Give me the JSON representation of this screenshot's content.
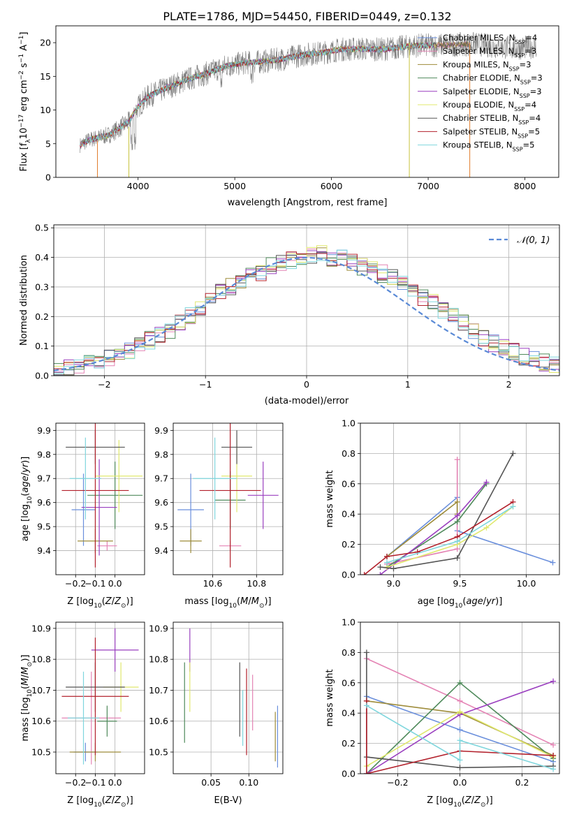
{
  "chart_data": [
    {
      "type": "line",
      "title": "PLATE=1786, MJD=54450, FIBERID=0449, z=0.132",
      "xlabel": "wavelength [Angstrom, rest frame]",
      "ylabel": "Flux [f_λ10^-17 erg cm^-2 s^-1 A^-1]",
      "xlim": [
        3150,
        8350
      ],
      "ylim": [
        0,
        22.5
      ],
      "xticks": [
        4000,
        5000,
        6000,
        7000,
        8000
      ],
      "yticks": [
        0,
        5,
        10,
        15,
        20
      ],
      "grid": false,
      "legend_position": "top-right",
      "legend": [
        {
          "name": "Chabrier MILES, N",
          "sub": "SSP",
          "tail": "=4"
        },
        {
          "name": "Salpeter MILES, N",
          "sub": "SSP",
          "tail": "=3"
        },
        {
          "name": "Kroupa MILES, N",
          "sub": "SSP",
          "tail": "=3"
        },
        {
          "name": "Chabrier ELODIE, N",
          "sub": "SSP",
          "tail": "=3"
        },
        {
          "name": "Salpeter ELODIE, N",
          "sub": "SSP",
          "tail": "=3"
        },
        {
          "name": "Kroupa ELODIE, N",
          "sub": "SSP",
          "tail": "=4"
        },
        {
          "name": "Chabrier STELIB, N",
          "sub": "SSP",
          "tail": "=4"
        },
        {
          "name": "Salpeter STELIB, N",
          "sub": "SSP",
          "tail": "=5"
        },
        {
          "name": "Kroupa STELIB, N",
          "sub": "SSP",
          "tail": "=5"
        }
      ],
      "colors": [
        "#6a8fdc",
        "#e483b4",
        "#9e8c3a",
        "#4f8a5b",
        "#9a3fbf",
        "#e0e86e",
        "#555555",
        "#b2202b",
        "#7fd6dd"
      ],
      "data_color": "#7f7f7f",
      "spectrum_envelope": {
        "x": [
          3400,
          3500,
          3700,
          3900,
          4000,
          4100,
          4300,
          4500,
          4700,
          4900,
          5100,
          5300,
          5500,
          5700,
          5900,
          6100,
          6300,
          6500,
          6700,
          6900,
          7100,
          7300,
          7500,
          7700,
          7900,
          8100
        ],
        "y": [
          4.8,
          5.6,
          6.3,
          8.2,
          10.5,
          12.0,
          13.3,
          14.5,
          15.4,
          16.5,
          17.0,
          17.2,
          17.6,
          18.2,
          18.5,
          19.0,
          19.1,
          19.0,
          19.3,
          19.6,
          19.6,
          19.7,
          19.8,
          19.4,
          19.2,
          19.4
        ]
      }
    },
    {
      "type": "bar",
      "xlabel": "(data-model)/error",
      "ylabel": "Normed distribution",
      "xlim": [
        -2.5,
        2.5
      ],
      "ylim": [
        0,
        0.51
      ],
      "xticks": [
        -2,
        -1,
        0,
        1,
        2
      ],
      "yticks": [
        0.0,
        0.1,
        0.2,
        0.3,
        0.4,
        0.5
      ],
      "grid": true,
      "legend_position": "top-right",
      "legend": [
        "𝒩(0, 1)"
      ],
      "reference_color": "#5a8ad6",
      "bin_width": 0.1,
      "bin_start": -2.5,
      "histogram": [
        0.02,
        0.025,
        0.03,
        0.04,
        0.055,
        0.06,
        0.075,
        0.085,
        0.1,
        0.12,
        0.135,
        0.15,
        0.18,
        0.2,
        0.23,
        0.25,
        0.28,
        0.3,
        0.32,
        0.34,
        0.35,
        0.37,
        0.38,
        0.39,
        0.4,
        0.41,
        0.41,
        0.4,
        0.395,
        0.385,
        0.37,
        0.36,
        0.345,
        0.33,
        0.31,
        0.29,
        0.265,
        0.245,
        0.22,
        0.2,
        0.175,
        0.15,
        0.13,
        0.11,
        0.095,
        0.08,
        0.065,
        0.055,
        0.045,
        0.035
      ]
    },
    {
      "type": "scatter",
      "xlabel": "Z [log10(Z/Z_sun)]",
      "ylabel": "age [log10(age/yr)]",
      "xlim": [
        -0.3,
        0.15
      ],
      "ylim": [
        9.3,
        9.93
      ],
      "xticks": [
        -0.2,
        -0.1,
        0.0
      ],
      "xticklabels": [
        "−0.2",
        "−0.1",
        "0.0"
      ],
      "yticks": [
        9.4,
        9.5,
        9.6,
        9.7,
        9.8,
        9.9
      ],
      "grid": true,
      "points": [
        {
          "x": -0.16,
          "y": 9.57,
          "xerr": 0.06,
          "yerr": 0.15
        },
        {
          "x": -0.04,
          "y": 9.42,
          "xerr": 0.05,
          "yerr": 0.02
        },
        {
          "x": -0.1,
          "y": 9.44,
          "xerr": 0.09,
          "yerr": 0.05
        },
        {
          "x": 0.0,
          "y": 9.63,
          "xerr": 0.14,
          "yerr": 0.14
        },
        {
          "x": -0.08,
          "y": 9.58,
          "xerr": 0.09,
          "yerr": 0.2
        },
        {
          "x": 0.02,
          "y": 9.71,
          "xerr": 0.12,
          "yerr": 0.15
        },
        {
          "x": -0.1,
          "y": 9.83,
          "xerr": 0.15,
          "yerr": 0.07
        },
        {
          "x": -0.1,
          "y": 9.65,
          "xerr": 0.17,
          "yerr": 0.32
        },
        {
          "x": -0.15,
          "y": 9.7,
          "xerr": 0.08,
          "yerr": 0.17
        }
      ]
    },
    {
      "type": "scatter",
      "xlabel": "mass [log10(M/M_sun)]",
      "ylabel": "",
      "xlim": [
        10.42,
        10.92
      ],
      "ylim": [
        9.3,
        9.93
      ],
      "xticks": [
        10.6,
        10.8
      ],
      "yticks": [
        9.4,
        9.5,
        9.6,
        9.7,
        9.8,
        9.9
      ],
      "grid": true,
      "points": [
        {
          "x": 10.5,
          "y": 9.57,
          "xerr": 0.06,
          "yerr": 0.15
        },
        {
          "x": 10.68,
          "y": 9.42,
          "xerr": 0.05,
          "yerr": 0.02
        },
        {
          "x": 10.5,
          "y": 9.44,
          "xerr": 0.05,
          "yerr": 0.05
        },
        {
          "x": 10.68,
          "y": 9.61,
          "xerr": 0.07,
          "yerr": 0.12
        },
        {
          "x": 10.83,
          "y": 9.63,
          "xerr": 0.07,
          "yerr": 0.14
        },
        {
          "x": 10.71,
          "y": 9.71,
          "xerr": 0.07,
          "yerr": 0.15
        },
        {
          "x": 10.71,
          "y": 9.83,
          "xerr": 0.07,
          "yerr": 0.07
        },
        {
          "x": 10.68,
          "y": 9.65,
          "xerr": 0.14,
          "yerr": 0.32
        },
        {
          "x": 10.61,
          "y": 9.7,
          "xerr": 0.1,
          "yerr": 0.17
        }
      ]
    },
    {
      "type": "line",
      "xlabel": "age [log10(age/yr)]",
      "ylabel": "mass weight",
      "xlim": [
        8.75,
        10.25
      ],
      "ylim": [
        0,
        1
      ],
      "xticks": [
        9.0,
        9.5,
        10.0
      ],
      "yticks": [
        0.0,
        0.2,
        0.4,
        0.6,
        0.8,
        1.0
      ],
      "grid": true,
      "series": [
        {
          "x": [
            8.95,
            9.48,
            9.48,
            10.2
          ],
          "y": [
            0.12,
            0.51,
            0.29,
            0.08
          ]
        },
        {
          "x": [
            8.95,
            9.48,
            9.48
          ],
          "y": [
            0.07,
            0.17,
            0.76
          ]
        },
        {
          "x": [
            8.95,
            9.48,
            9.48
          ],
          "y": [
            0.12,
            0.48,
            0.4
          ]
        },
        {
          "x": [
            8.95,
            9.48,
            9.7
          ],
          "y": [
            0.05,
            0.35,
            0.6
          ]
        },
        {
          "x": [
            8.9,
            9.48,
            9.7
          ],
          "y": [
            0.0,
            0.39,
            0.61
          ]
        },
        {
          "x": [
            8.95,
            9.48,
            9.7,
            9.9
          ],
          "y": [
            0.05,
            0.2,
            0.31,
            0.45
          ]
        },
        {
          "x": [
            8.9,
            9.0,
            9.48,
            9.9
          ],
          "y": [
            0.05,
            0.04,
            0.11,
            0.8
          ]
        },
        {
          "x": [
            8.78,
            8.95,
            9.18,
            9.48,
            9.9
          ],
          "y": [
            0.0,
            0.12,
            0.15,
            0.25,
            0.48
          ]
        },
        {
          "x": [
            8.95,
            9.48,
            9.9
          ],
          "y": [
            0.08,
            0.22,
            0.45
          ]
        }
      ]
    },
    {
      "type": "scatter",
      "xlabel": "Z [log10(Z/Z_sun)]",
      "ylabel": "mass [log10(M/M_sun)]",
      "xlim": [
        -0.3,
        0.15
      ],
      "ylim": [
        10.43,
        10.92
      ],
      "xticks": [
        -0.2,
        -0.1,
        0.0
      ],
      "xticklabels": [
        "−0.2",
        "−0.1",
        "0.0"
      ],
      "yticks": [
        10.5,
        10.6,
        10.7,
        10.8,
        10.9
      ],
      "grid": true,
      "points": [
        {
          "x": -0.15,
          "y": 10.5,
          "xerr": 0.06,
          "yerr": 0.03
        },
        {
          "x": -0.12,
          "y": 10.61,
          "xerr": 0.15,
          "yerr": 0.15
        },
        {
          "x": -0.1,
          "y": 10.5,
          "xerr": 0.13,
          "yerr": 0.03
        },
        {
          "x": -0.04,
          "y": 10.6,
          "xerr": 0.05,
          "yerr": 0.05
        },
        {
          "x": 0.0,
          "y": 10.83,
          "xerr": 0.12,
          "yerr": 0.07
        },
        {
          "x": 0.03,
          "y": 10.71,
          "xerr": 0.09,
          "yerr": 0.08
        },
        {
          "x": -0.1,
          "y": 10.71,
          "xerr": 0.15,
          "yerr": 0.08
        },
        {
          "x": -0.1,
          "y": 10.68,
          "xerr": 0.17,
          "yerr": 0.19
        },
        {
          "x": -0.16,
          "y": 10.61,
          "xerr": 0.08,
          "yerr": 0.15
        }
      ]
    },
    {
      "type": "scatter",
      "xlabel": "E(B-V)",
      "ylabel": "",
      "xlim": [
        0.0,
        0.145
      ],
      "ylim": [
        10.43,
        10.92
      ],
      "xticks": [
        0.05,
        0.1
      ],
      "xticklabels": [
        "0.05",
        "0.10"
      ],
      "yticks": [
        10.5,
        10.6,
        10.7,
        10.8,
        10.9
      ],
      "grid": true,
      "points": [
        {
          "x": 0.138,
          "y": 10.55,
          "yerr": 0.1
        },
        {
          "x": 0.105,
          "y": 10.66,
          "yerr": 0.09
        },
        {
          "x": 0.135,
          "y": 10.55,
          "yerr": 0.08
        },
        {
          "x": 0.015,
          "y": 10.66,
          "yerr": 0.13
        },
        {
          "x": 0.022,
          "y": 10.83,
          "yerr": 0.07
        },
        {
          "x": 0.022,
          "y": 10.71,
          "yerr": 0.08
        },
        {
          "x": 0.088,
          "y": 10.67,
          "yerr": 0.12
        },
        {
          "x": 0.097,
          "y": 10.63,
          "yerr": 0.14
        },
        {
          "x": 0.092,
          "y": 10.61,
          "yerr": 0.09
        }
      ]
    },
    {
      "type": "line",
      "xlabel": "Z [log10(Z/Z_sun)]",
      "ylabel": "mass weight",
      "xlim": [
        -0.32,
        0.32
      ],
      "ylim": [
        0,
        1
      ],
      "xticks": [
        -0.2,
        0.0,
        0.2
      ],
      "xticklabels": [
        "−0.2",
        "0.0",
        "0.2"
      ],
      "yticks": [
        0.0,
        0.2,
        0.4,
        0.6,
        0.8,
        1.0
      ],
      "grid": true,
      "series": [
        {
          "x": [
            -0.3,
            0.0,
            0.3
          ],
          "y": [
            0.51,
            0.29,
            0.08
          ]
        },
        {
          "x": [
            -0.3,
            0.0,
            0.3
          ],
          "y": [
            0.76,
            0.48,
            0.19
          ]
        },
        {
          "x": [
            -0.3,
            0.0,
            0.3
          ],
          "y": [
            0.48,
            0.4,
            0.12
          ]
        },
        {
          "x": [
            -0.3,
            0.0,
            0.3
          ],
          "y": [
            0.0,
            0.6,
            0.1
          ]
        },
        {
          "x": [
            -0.3,
            0.0,
            0.3
          ],
          "y": [
            0.0,
            0.39,
            0.61
          ]
        },
        {
          "x": [
            -0.3,
            0.0,
            0.3
          ],
          "y": [
            0.05,
            0.41,
            0.11
          ]
        },
        {
          "x": [
            -0.3,
            -0.3,
            0.0,
            0.3
          ],
          "y": [
            0.8,
            0.11,
            0.04,
            0.05
          ]
        },
        {
          "x": [
            -0.3,
            -0.3,
            0.0,
            0.3
          ],
          "y": [
            0.48,
            0.0,
            0.15,
            0.12
          ]
        },
        {
          "x": [
            -0.3,
            0.0,
            0.0,
            0.3
          ],
          "y": [
            0.45,
            0.09,
            0.22,
            0.03
          ]
        }
      ]
    }
  ]
}
